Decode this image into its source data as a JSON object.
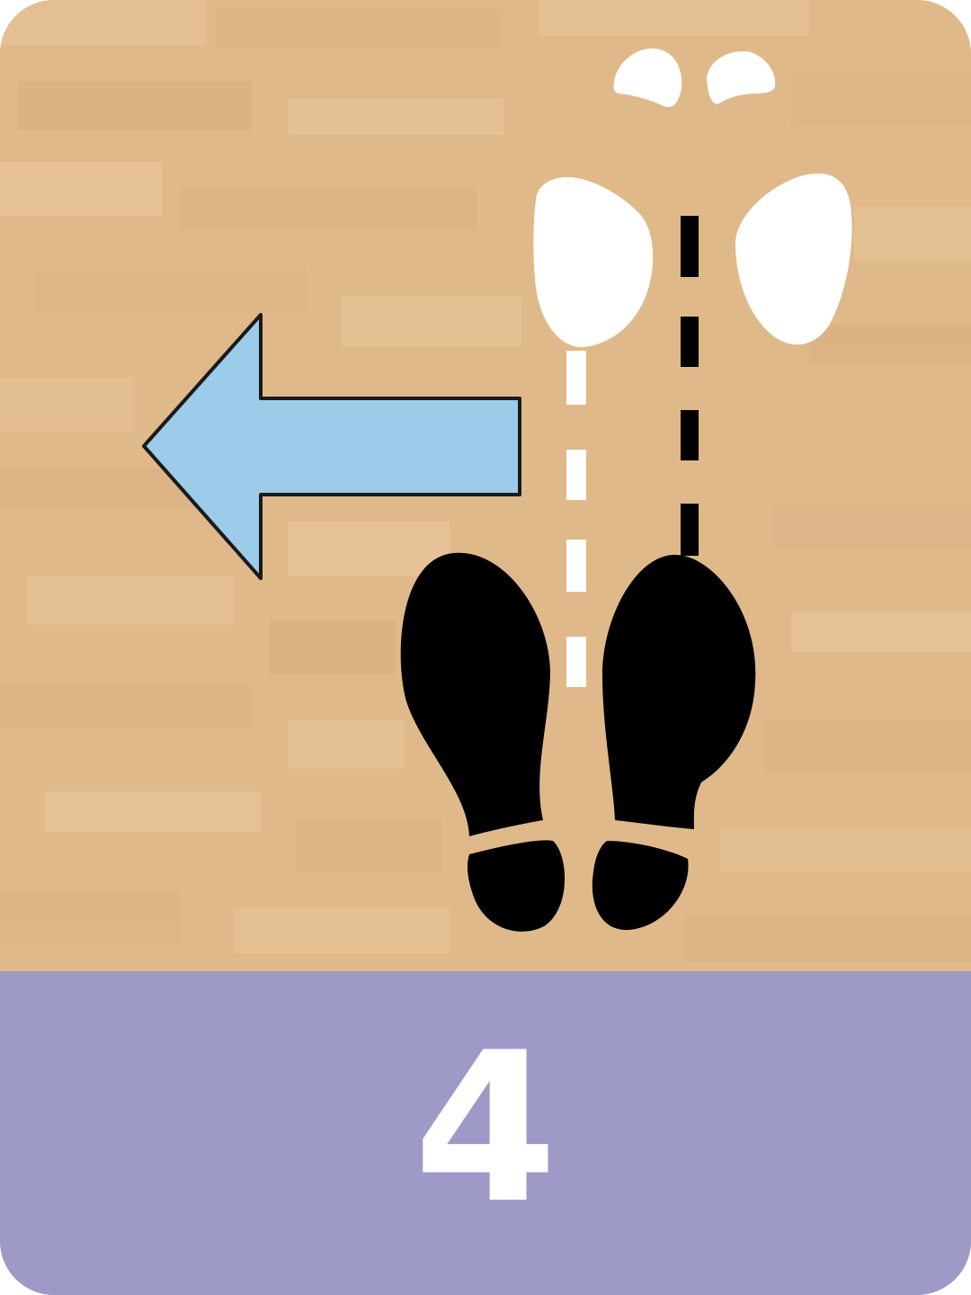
{
  "card": {
    "step_number": "4"
  },
  "colors": {
    "floor": "#e0b98a",
    "footer": "#9e9ac8",
    "arrow_fill": "#9dcbea",
    "arrow_stroke": "#1a1a1a",
    "partner_footprints": "#ffffff",
    "dancer_footprints": "#000000"
  },
  "icons": {
    "direction_arrow": "arrow-left-icon",
    "partner_feet": "white-footprints-icon",
    "dancer_feet": "black-shoe-prints-icon"
  }
}
